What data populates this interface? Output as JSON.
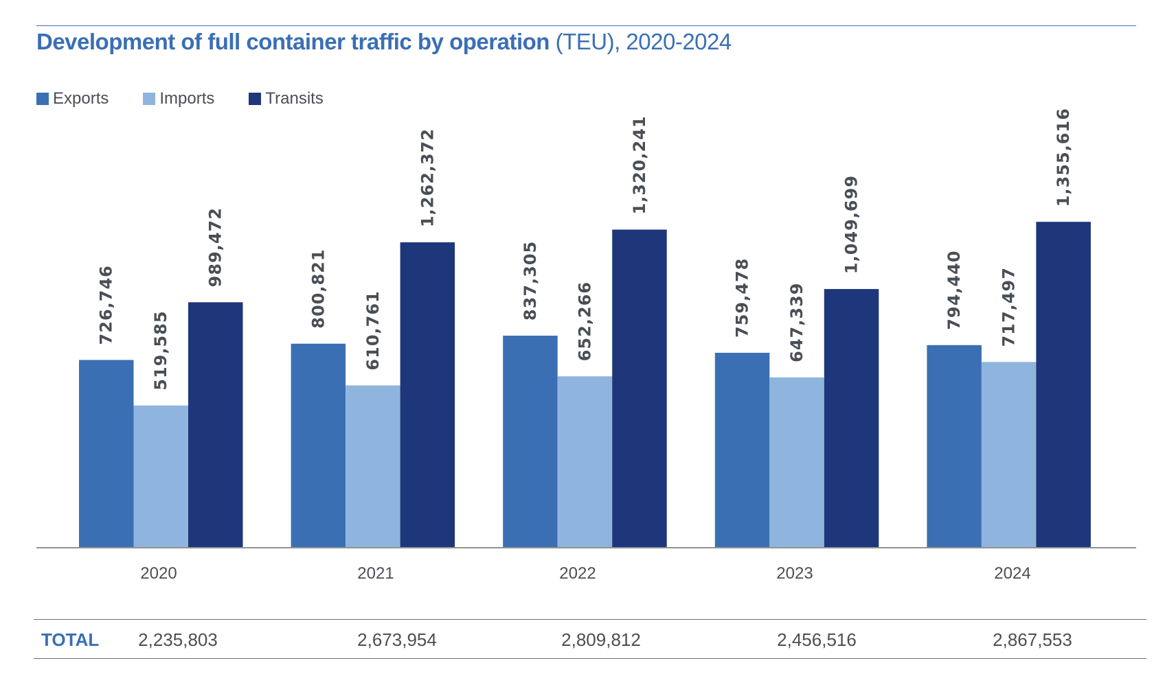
{
  "chart_data": {
    "type": "bar",
    "title": "Development of full container traffic by operation",
    "subtitle": "(TEU), 2020-2024",
    "categories": [
      "2020",
      "2021",
      "2022",
      "2023",
      "2024"
    ],
    "series": [
      {
        "name": "Exports",
        "color": "#3a70b3",
        "values": [
          726746,
          800821,
          837305,
          759478,
          794440
        ],
        "labels": [
          "726,746",
          "800,821",
          "837,305",
          "759,478",
          "794,440"
        ]
      },
      {
        "name": "Imports",
        "color": "#8fb5de",
        "values": [
          519585,
          610761,
          652266,
          647339,
          717497
        ],
        "labels": [
          "519,585",
          "610,761",
          "652,266",
          "647,339",
          "717,497"
        ]
      },
      {
        "name": "Transits",
        "color": "#1e367a",
        "values": [
          989472,
          1262372,
          1320241,
          1049699,
          1355616
        ],
        "labels": [
          "989,472",
          "1,262,372",
          "1,320,241",
          "1,049,699",
          "1,355,616"
        ]
      }
    ],
    "legend": "top-left",
    "grid": false,
    "total_label": "TOTAL",
    "totals": [
      "2,235,803",
      "2,673,954",
      "2,809,812",
      "2,456,516",
      "2,867,553"
    ]
  }
}
